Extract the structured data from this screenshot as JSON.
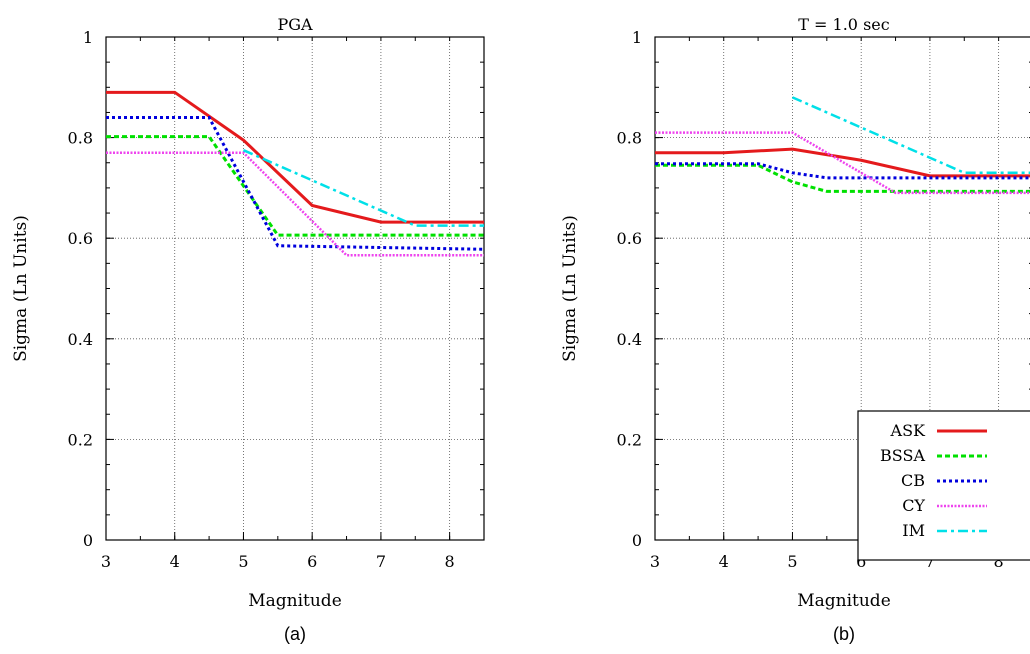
{
  "chart_data": [
    {
      "type": "line",
      "title": "PGA",
      "caption": "(a)",
      "xlabel": "Magnitude",
      "ylabel": "Sigma (Ln Units)",
      "xlim": [
        3,
        8.5
      ],
      "ylim": [
        0,
        1
      ],
      "xticks": [
        "3",
        "4",
        "5",
        "6",
        "7",
        "8"
      ],
      "yticks": [
        "0",
        "0.2",
        "0.4",
        "0.6",
        "0.8",
        "1"
      ],
      "grid": true,
      "series": [
        {
          "name": "ASK",
          "color": "#e41a1c",
          "x": [
            3,
            4,
            5,
            6,
            7,
            8.5
          ],
          "y": [
            0.89,
            0.89,
            0.795,
            0.665,
            0.632,
            0.632
          ]
        },
        {
          "name": "BSSA",
          "color": "#00e000",
          "x": [
            3,
            4.5,
            5.5,
            8.5
          ],
          "y": [
            0.802,
            0.802,
            0.606,
            0.606
          ]
        },
        {
          "name": "CB",
          "color": "#0000dd",
          "x": [
            3,
            4.5,
            5.5,
            8.5
          ],
          "y": [
            0.84,
            0.84,
            0.585,
            0.578
          ]
        },
        {
          "name": "CY",
          "color": "#ee44ee",
          "x": [
            3,
            5,
            6.5,
            8.5
          ],
          "y": [
            0.77,
            0.77,
            0.566,
            0.566
          ]
        },
        {
          "name": "IM",
          "color": "#00e0e8",
          "x": [
            5,
            7.5,
            8.5
          ],
          "y": [
            0.775,
            0.625,
            0.625
          ]
        }
      ]
    },
    {
      "type": "line",
      "title": "T = 1.0 sec",
      "caption": "(b)",
      "xlabel": "Magnitude",
      "ylabel": "Sigma (Ln Units)",
      "xlim": [
        3,
        8.5
      ],
      "ylim": [
        0,
        1
      ],
      "xticks": [
        "3",
        "4",
        "5",
        "6",
        "7",
        "8"
      ],
      "yticks": [
        "0",
        "0.2",
        "0.4",
        "0.6",
        "0.8",
        "1"
      ],
      "grid": true,
      "legend": "bottom-right",
      "series": [
        {
          "name": "ASK",
          "color": "#e41a1c",
          "x": [
            3,
            4,
            5,
            6,
            7,
            8.5
          ],
          "y": [
            0.77,
            0.77,
            0.777,
            0.755,
            0.724,
            0.724
          ]
        },
        {
          "name": "BSSA",
          "color": "#00e000",
          "x": [
            3,
            4.5,
            5,
            5.5,
            8.5
          ],
          "y": [
            0.745,
            0.745,
            0.712,
            0.693,
            0.693
          ]
        },
        {
          "name": "CB",
          "color": "#0000dd",
          "x": [
            3,
            4.5,
            5,
            5.5,
            8.5
          ],
          "y": [
            0.748,
            0.748,
            0.73,
            0.72,
            0.72
          ]
        },
        {
          "name": "CY",
          "color": "#ee44ee",
          "x": [
            3,
            5,
            6.5,
            8.5
          ],
          "y": [
            0.81,
            0.81,
            0.69,
            0.69
          ]
        },
        {
          "name": "IM",
          "color": "#00e0e8",
          "x": [
            5,
            7.5,
            8.5
          ],
          "y": [
            0.88,
            0.73,
            0.73
          ]
        }
      ]
    }
  ]
}
